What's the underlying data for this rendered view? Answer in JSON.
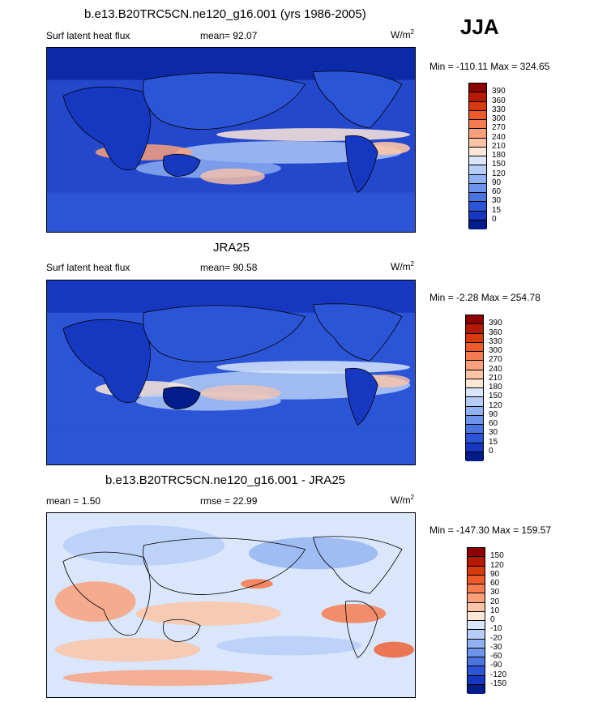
{
  "season": "JJA",
  "panels": [
    {
      "title": "b.e13.B20TRC5CN.ne120_g16.001 (yrs 1986-2005)",
      "left_label": "Surf latent heat flux",
      "mean_label": "mean=  92.07",
      "unit": "W/m",
      "unit_sup": "2",
      "minmax": "Min = -110.11 Max = 324.65",
      "colorbar": {
        "ticks": [
          "390",
          "360",
          "330",
          "300",
          "270",
          "240",
          "210",
          "180",
          "150",
          "120",
          "90",
          "60",
          "30",
          "15",
          "0"
        ],
        "colors": [
          "#8b0000",
          "#b51a00",
          "#d83a0e",
          "#ee5a2a",
          "#f57c51",
          "#f9a07a",
          "#fcc4a6",
          "#fde8d8",
          "#d9e6fb",
          "#b5cdf7",
          "#90b2f1",
          "#6b94ea",
          "#4a74e2",
          "#2b55d6",
          "#1638c0",
          "#021c8c"
        ]
      },
      "chart_data": {
        "type": "heatmap",
        "title": "b.e13.B20TRC5CN.ne120_g16.001 (yrs 1986-2005)",
        "variable": "Surf latent heat flux",
        "units": "W/m2",
        "mean": 92.07,
        "min": -110.11,
        "max": 324.65,
        "levels": [
          0,
          15,
          30,
          60,
          90,
          120,
          150,
          180,
          210,
          240,
          270,
          300,
          330,
          360,
          390
        ]
      }
    },
    {
      "title": "JRA25",
      "left_label": "Surf latent heat flux",
      "mean_label": "mean=  90.58",
      "unit": "W/m",
      "unit_sup": "2",
      "minmax": "Min =  -2.28 Max = 254.78",
      "colorbar": {
        "ticks": [
          "390",
          "360",
          "330",
          "300",
          "270",
          "240",
          "210",
          "180",
          "150",
          "120",
          "90",
          "60",
          "30",
          "15",
          "0"
        ],
        "colors": [
          "#8b0000",
          "#b51a00",
          "#d83a0e",
          "#ee5a2a",
          "#f57c51",
          "#f9a07a",
          "#fcc4a6",
          "#fde8d8",
          "#d9e6fb",
          "#b5cdf7",
          "#90b2f1",
          "#6b94ea",
          "#4a74e2",
          "#2b55d6",
          "#1638c0",
          "#021c8c"
        ]
      },
      "chart_data": {
        "type": "heatmap",
        "title": "JRA25",
        "variable": "Surf latent heat flux",
        "units": "W/m2",
        "mean": 90.58,
        "min": -2.28,
        "max": 254.78,
        "levels": [
          0,
          15,
          30,
          60,
          90,
          120,
          150,
          180,
          210,
          240,
          270,
          300,
          330,
          360,
          390
        ]
      }
    },
    {
      "title": "b.e13.B20TRC5CN.ne120_g16.001 - JRA25",
      "left_label": "mean =   1.50",
      "mean_label": "rmse =  22.99",
      "unit": "W/m",
      "unit_sup": "2",
      "minmax": "Min = -147.30 Max = 159.57",
      "colorbar": {
        "ticks": [
          "150",
          "120",
          "90",
          "60",
          "30",
          "20",
          "10",
          "0",
          "-10",
          "-20",
          "-30",
          "-60",
          "-90",
          "-120",
          "-150"
        ],
        "colors": [
          "#8b0000",
          "#b51a00",
          "#d83a0e",
          "#ee5a2a",
          "#f57c51",
          "#f9a07a",
          "#fcc4a6",
          "#fde8d8",
          "#d9e6fb",
          "#b5cdf7",
          "#90b2f1",
          "#6b94ea",
          "#4a74e2",
          "#2b55d6",
          "#1638c0",
          "#021c8c"
        ]
      },
      "chart_data": {
        "type": "heatmap",
        "title": "b.e13.B20TRC5CN.ne120_g16.001 - JRA25",
        "units": "W/m2",
        "mean": 1.5,
        "rmse": 22.99,
        "min": -147.3,
        "max": 159.57,
        "levels": [
          -150,
          -120,
          -90,
          -60,
          -30,
          -20,
          -10,
          0,
          10,
          20,
          30,
          60,
          90,
          120,
          150
        ]
      }
    }
  ]
}
